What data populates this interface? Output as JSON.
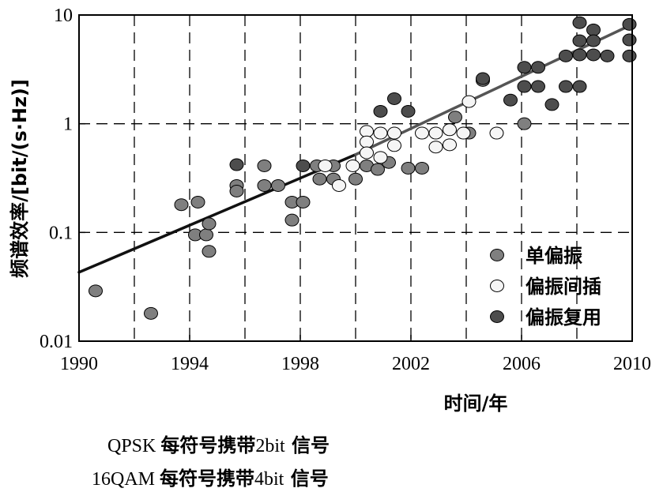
{
  "chart_data": {
    "type": "scatter",
    "xlabel": "时间/年",
    "ylabel": "频谱效率/[bit/(s·Hz)]",
    "x_scale": "linear",
    "y_scale": "log",
    "xlim": [
      1990,
      2010
    ],
    "ylim": [
      0.01,
      10
    ],
    "x_ticks": [
      1990,
      1994,
      1998,
      2002,
      2006,
      2010
    ],
    "x_tick_labels": [
      "1990",
      "1994",
      "1998",
      "2002",
      "2006",
      "2010"
    ],
    "y_ticks": [
      0.01,
      0.1,
      1,
      10
    ],
    "y_tick_labels": [
      "0.01",
      "0.1",
      "1",
      "10"
    ],
    "x_gridlines": [
      1992,
      1994,
      1996,
      1998,
      2000,
      2002,
      2004,
      2006,
      2008
    ],
    "y_gridlines": [
      0.1,
      1
    ],
    "grid": "dashed",
    "legend_position": "bottom-right",
    "series": [
      {
        "name": "单偏振",
        "color": "#7f7f7f",
        "points": [
          [
            1990.6,
            0.029
          ],
          [
            1992.6,
            0.018
          ],
          [
            1993.7,
            0.18
          ],
          [
            1994.2,
            0.095
          ],
          [
            1994.3,
            0.19
          ],
          [
            1994.6,
            0.095
          ],
          [
            1994.7,
            0.12
          ],
          [
            1994.7,
            0.067
          ],
          [
            1995.7,
            0.27
          ],
          [
            1995.7,
            0.24
          ],
          [
            1996.7,
            0.41
          ],
          [
            1996.7,
            0.27
          ],
          [
            1997.2,
            0.27
          ],
          [
            1997.7,
            0.19
          ],
          [
            1997.7,
            0.13
          ],
          [
            1998.1,
            0.19
          ],
          [
            1998.6,
            0.41
          ],
          [
            1998.7,
            0.31
          ],
          [
            1999.2,
            0.41
          ],
          [
            1999.2,
            0.31
          ],
          [
            2000.0,
            0.31
          ],
          [
            2000.4,
            0.41
          ],
          [
            2000.8,
            0.38
          ],
          [
            2001.2,
            0.44
          ],
          [
            2001.9,
            0.39
          ],
          [
            2002.4,
            0.39
          ],
          [
            2003.6,
            1.15
          ],
          [
            2004.1,
            0.82
          ],
          [
            2004.6,
            2.5
          ],
          [
            2006.1,
            1.0
          ]
        ]
      },
      {
        "name": "偏振间插",
        "color": "#f5f5f5",
        "points": [
          [
            1998.9,
            0.41
          ],
          [
            1999.4,
            0.27
          ],
          [
            1999.9,
            0.41
          ],
          [
            2000.4,
            0.85
          ],
          [
            2000.4,
            0.68
          ],
          [
            2000.4,
            0.54
          ],
          [
            2000.9,
            0.82
          ],
          [
            2000.9,
            0.49
          ],
          [
            2001.4,
            0.82
          ],
          [
            2001.4,
            0.63
          ],
          [
            2002.4,
            0.82
          ],
          [
            2002.9,
            0.82
          ],
          [
            2002.9,
            0.61
          ],
          [
            2003.4,
            0.88
          ],
          [
            2003.4,
            0.64
          ],
          [
            2003.9,
            0.82
          ],
          [
            2004.1,
            1.6
          ],
          [
            2005.1,
            0.82
          ]
        ]
      },
      {
        "name": "偏振复用",
        "color": "#4d4d4d",
        "points": [
          [
            1995.7,
            0.42
          ],
          [
            1998.1,
            0.41
          ],
          [
            2000.9,
            1.3
          ],
          [
            2001.4,
            1.7
          ],
          [
            2001.9,
            1.3
          ],
          [
            2004.6,
            2.6
          ],
          [
            2005.6,
            1.65
          ],
          [
            2006.1,
            3.3
          ],
          [
            2006.1,
            2.2
          ],
          [
            2006.6,
            3.3
          ],
          [
            2006.6,
            2.2
          ],
          [
            2007.1,
            1.5
          ],
          [
            2007.6,
            4.2
          ],
          [
            2007.6,
            2.2
          ],
          [
            2008.1,
            8.5
          ],
          [
            2008.1,
            5.8
          ],
          [
            2008.1,
            4.3
          ],
          [
            2008.1,
            2.2
          ],
          [
            2008.6,
            7.3
          ],
          [
            2008.6,
            5.8
          ],
          [
            2008.6,
            4.3
          ],
          [
            2009.1,
            4.2
          ],
          [
            2009.9,
            8.2
          ],
          [
            2009.9,
            5.9
          ],
          [
            2009.9,
            4.2
          ]
        ]
      }
    ],
    "trend_lines": [
      {
        "color": "#111111",
        "from": [
          1990,
          0.043
        ],
        "to": [
          2000,
          0.52
        ]
      },
      {
        "color": "#555555",
        "from": [
          2000,
          0.52
        ],
        "to": [
          2010,
          8.2
        ]
      }
    ]
  },
  "notes": [
    {
      "prefix": "QPSK ",
      "text": "每符号携带",
      "suffix": "2bit",
      "end": " 信号"
    },
    {
      "prefix": "16QAM ",
      "text": "每符号携带",
      "suffix": "4bit",
      "end": " 信号"
    }
  ]
}
